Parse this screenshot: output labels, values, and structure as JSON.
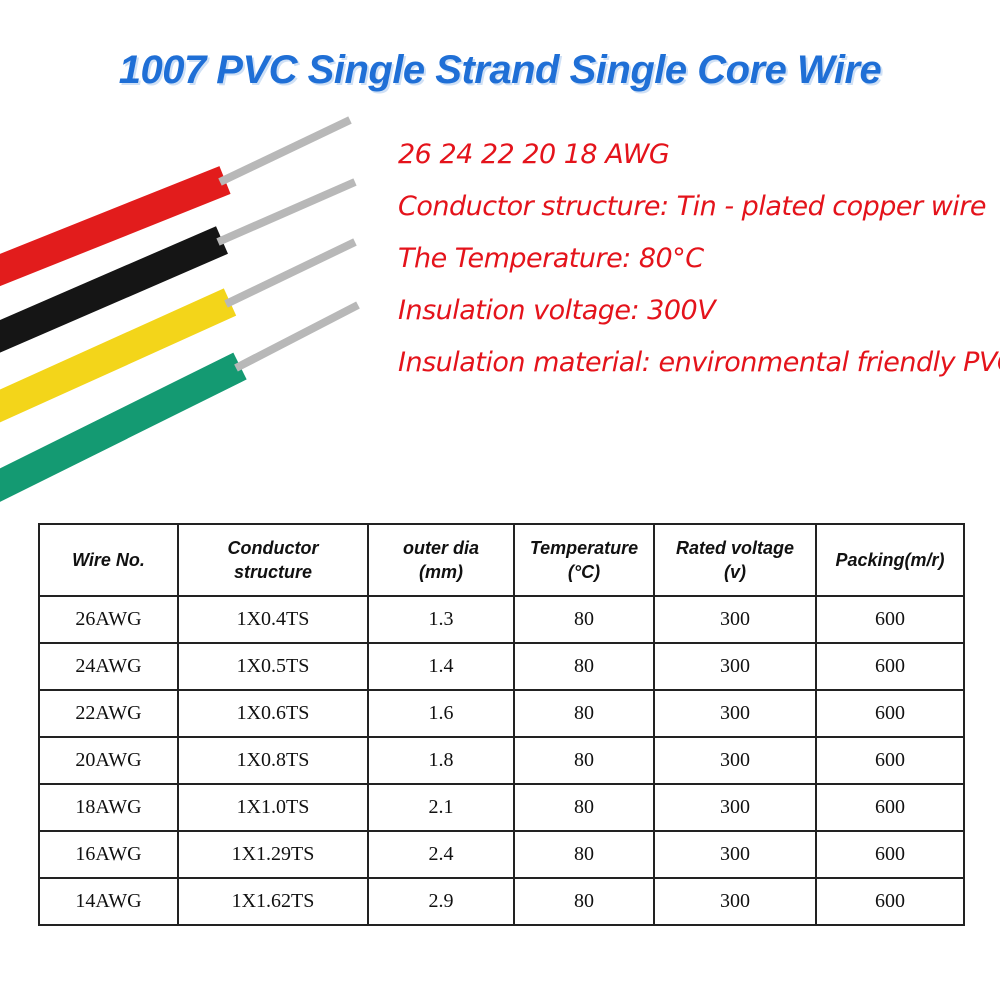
{
  "header": {
    "title": "1007 PVC Single Strand Single Core Wire"
  },
  "specs": [
    "26 24 22 20 18 AWG",
    "Conductor structure: Tin - plated copper wire",
    "The Temperature: 80°C",
    "Insulation voltage: 300V",
    "Insulation material: environmental friendly PVC"
  ],
  "table": {
    "header": [
      [
        "Wire No."
      ],
      [
        "Conductor",
        "structure"
      ],
      [
        "outer dia",
        "(mm)"
      ],
      [
        "Temperature",
        "(°C)"
      ],
      [
        "Rated voltage",
        "(v)"
      ],
      [
        "Packing(m/r)"
      ]
    ],
    "rows": [
      [
        "26AWG",
        "1X0.4TS",
        "1.3",
        "80",
        "300",
        "600"
      ],
      [
        "24AWG",
        "1X0.5TS",
        "1.4",
        "80",
        "300",
        "600"
      ],
      [
        "22AWG",
        "1X0.6TS",
        "1.6",
        "80",
        "300",
        "600"
      ],
      [
        "20AWG",
        "1X0.8TS",
        "1.8",
        "80",
        "300",
        "600"
      ],
      [
        "18AWG",
        "1X1.0TS",
        "2.1",
        "80",
        "300",
        "600"
      ],
      [
        "16AWG",
        "1X1.29TS",
        "2.4",
        "80",
        "300",
        "600"
      ],
      [
        "14AWG",
        "1X1.62TS",
        "2.9",
        "80",
        "300",
        "600"
      ]
    ]
  }
}
